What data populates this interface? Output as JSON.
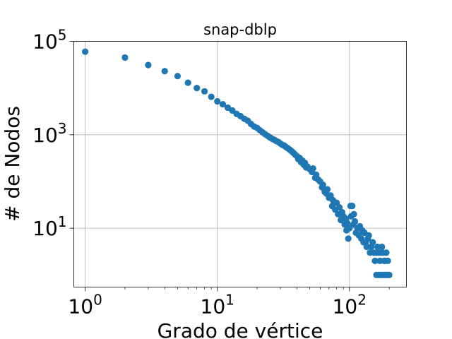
{
  "chart_data": {
    "type": "scatter",
    "title": "snap-dblp",
    "xlabel": "Grado de vértice",
    "ylabel": "# de Nodos",
    "xscale": "log",
    "yscale": "log",
    "xlim": [
      0.82,
      270
    ],
    "ylim": [
      0.55,
      100000
    ],
    "grid": true,
    "marker_color": "#1f77b4",
    "x_ticks": [
      {
        "value": 1,
        "base": "10",
        "exp": "0"
      },
      {
        "value": 10,
        "base": "10",
        "exp": "1"
      },
      {
        "value": 100,
        "base": "10",
        "exp": "2"
      }
    ],
    "y_ticks": [
      {
        "value": 10,
        "base": "10",
        "exp": "1"
      },
      {
        "value": 1000,
        "base": "10",
        "exp": "3"
      },
      {
        "value": 100000,
        "base": "10",
        "exp": "5"
      }
    ],
    "points": [
      [
        1,
        60000
      ],
      [
        2,
        45000
      ],
      [
        3,
        31000
      ],
      [
        4,
        23000
      ],
      [
        5,
        18000
      ],
      [
        6,
        13000
      ],
      [
        7,
        10000
      ],
      [
        8,
        8500
      ],
      [
        9,
        6500
      ],
      [
        10,
        5200
      ],
      [
        11,
        4500
      ],
      [
        12,
        3800
      ],
      [
        13,
        3300
      ],
      [
        14,
        2800
      ],
      [
        15,
        2500
      ],
      [
        16,
        2200
      ],
      [
        17,
        2000
      ],
      [
        18,
        1700
      ],
      [
        19,
        1500
      ],
      [
        20,
        1400
      ],
      [
        21,
        1250
      ],
      [
        22,
        1130
      ],
      [
        23,
        1030
      ],
      [
        24,
        950
      ],
      [
        25,
        880
      ],
      [
        26,
        820
      ],
      [
        27,
        780
      ],
      [
        28,
        730
      ],
      [
        29,
        700
      ],
      [
        30,
        650
      ],
      [
        31,
        610
      ],
      [
        32,
        590
      ],
      [
        33,
        550
      ],
      [
        34,
        520
      ],
      [
        35,
        490
      ],
      [
        36,
        460
      ],
      [
        37,
        430
      ],
      [
        38,
        400
      ],
      [
        39,
        370
      ],
      [
        40,
        350
      ],
      [
        41,
        300
      ],
      [
        42,
        320
      ],
      [
        43,
        260
      ],
      [
        44,
        280
      ],
      [
        45,
        230
      ],
      [
        46,
        250
      ],
      [
        47,
        200
      ],
      [
        48,
        210
      ],
      [
        50,
        185
      ],
      [
        52,
        160
      ],
      [
        53,
        190
      ],
      [
        55,
        120
      ],
      [
        56,
        140
      ],
      [
        58,
        110
      ],
      [
        60,
        100
      ],
      [
        62,
        75
      ],
      [
        63,
        85
      ],
      [
        65,
        60
      ],
      [
        67,
        55
      ],
      [
        68,
        68
      ],
      [
        70,
        45
      ],
      [
        72,
        50
      ],
      [
        74,
        30
      ],
      [
        75,
        40
      ],
      [
        78,
        25
      ],
      [
        80,
        35
      ],
      [
        82,
        20
      ],
      [
        84,
        28
      ],
      [
        86,
        15
      ],
      [
        88,
        22
      ],
      [
        90,
        18
      ],
      [
        92,
        12
      ],
      [
        94,
        16
      ],
      [
        96,
        13
      ],
      [
        100,
        10
      ],
      [
        103,
        18
      ],
      [
        105,
        30
      ],
      [
        107,
        12
      ],
      [
        110,
        14
      ],
      [
        112,
        8
      ],
      [
        115,
        10
      ],
      [
        118,
        7
      ],
      [
        120,
        11
      ],
      [
        123,
        6
      ],
      [
        125,
        9
      ],
      [
        128,
        5
      ],
      [
        130,
        8
      ],
      [
        133,
        5
      ],
      [
        135,
        4
      ],
      [
        138,
        6
      ],
      [
        140,
        7
      ],
      [
        143,
        3
      ],
      [
        146,
        4
      ],
      [
        150,
        5
      ],
      [
        153,
        3
      ],
      [
        156,
        2
      ],
      [
        160,
        3
      ],
      [
        163,
        4
      ],
      [
        166,
        3
      ],
      [
        170,
        2
      ],
      [
        173,
        3
      ],
      [
        176,
        4
      ],
      [
        180,
        3
      ],
      [
        183,
        2
      ],
      [
        186,
        2
      ],
      [
        190,
        3
      ],
      [
        195,
        2
      ],
      [
        160,
        1
      ],
      [
        165,
        1
      ],
      [
        170,
        1
      ],
      [
        175,
        1
      ],
      [
        180,
        1
      ],
      [
        185,
        1
      ],
      [
        190,
        1
      ],
      [
        195,
        1
      ],
      [
        200,
        1
      ],
      [
        102,
        30
      ],
      [
        108,
        20
      ],
      [
        98,
        6
      ],
      [
        95,
        9
      ]
    ]
  }
}
